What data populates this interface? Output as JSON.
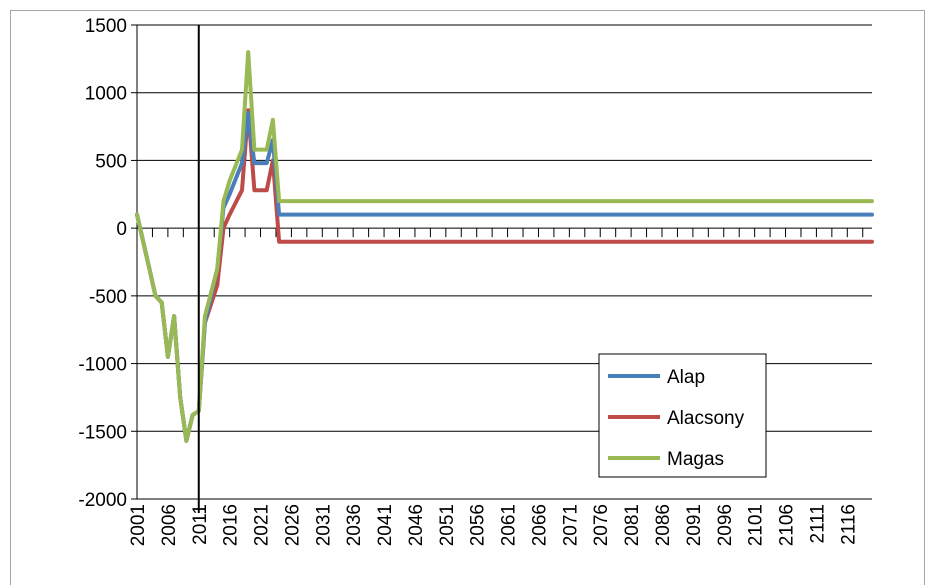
{
  "chart_data": {
    "type": "line",
    "title": "",
    "xlabel": "",
    "ylabel": "",
    "x_start": 2001,
    "x_end": 2120,
    "x_tick_labels": [
      "2001",
      "2006",
      "2011",
      "2016",
      "2021",
      "2026",
      "2031",
      "2036",
      "2041",
      "2046",
      "2051",
      "2056",
      "2061",
      "2066",
      "2071",
      "2076",
      "2081",
      "2086",
      "2091",
      "2096",
      "2101",
      "2106",
      "2111",
      "2116"
    ],
    "y_tick_labels": [
      "1500",
      "1000",
      "500",
      "0",
      "-500",
      "-1000",
      "-1500",
      "-2000"
    ],
    "ylim": [
      -2000,
      1500
    ],
    "grid": "horizontal",
    "reference_line_x": 2011,
    "legend_position": "bottom-right",
    "series": [
      {
        "name": "Alap",
        "color": "#4a7ebb",
        "points": [
          [
            2001,
            100
          ],
          [
            2002,
            -100
          ],
          [
            2003,
            -300
          ],
          [
            2004,
            -500
          ],
          [
            2005,
            -550
          ],
          [
            2006,
            -950
          ],
          [
            2007,
            -650
          ],
          [
            2008,
            -1250
          ],
          [
            2009,
            -1570
          ],
          [
            2010,
            -1380
          ],
          [
            2011,
            -1350
          ],
          [
            2012,
            -700
          ],
          [
            2014,
            -300
          ],
          [
            2015,
            150
          ],
          [
            2016,
            250
          ],
          [
            2018,
            480
          ],
          [
            2019,
            850
          ],
          [
            2020,
            480
          ],
          [
            2021,
            480
          ],
          [
            2022,
            480
          ],
          [
            2023,
            650
          ],
          [
            2024,
            100
          ],
          [
            2120,
            100
          ]
        ]
      },
      {
        "name": "Alacsony",
        "color": "#be4b48",
        "points": [
          [
            2001,
            100
          ],
          [
            2002,
            -100
          ],
          [
            2003,
            -300
          ],
          [
            2004,
            -500
          ],
          [
            2005,
            -550
          ],
          [
            2006,
            -950
          ],
          [
            2007,
            -650
          ],
          [
            2008,
            -1250
          ],
          [
            2009,
            -1570
          ],
          [
            2010,
            -1380
          ],
          [
            2011,
            -1350
          ],
          [
            2012,
            -700
          ],
          [
            2014,
            -420
          ],
          [
            2015,
            0
          ],
          [
            2016,
            100
          ],
          [
            2018,
            280
          ],
          [
            2019,
            870
          ],
          [
            2020,
            280
          ],
          [
            2021,
            280
          ],
          [
            2022,
            280
          ],
          [
            2023,
            500
          ],
          [
            2024,
            -100
          ],
          [
            2120,
            -100
          ]
        ]
      },
      {
        "name": "Magas",
        "color": "#98b954",
        "points": [
          [
            2001,
            100
          ],
          [
            2002,
            -100
          ],
          [
            2003,
            -300
          ],
          [
            2004,
            -500
          ],
          [
            2005,
            -550
          ],
          [
            2006,
            -950
          ],
          [
            2007,
            -650
          ],
          [
            2008,
            -1250
          ],
          [
            2009,
            -1570
          ],
          [
            2010,
            -1380
          ],
          [
            2011,
            -1350
          ],
          [
            2012,
            -650
          ],
          [
            2014,
            -300
          ],
          [
            2015,
            200
          ],
          [
            2016,
            350
          ],
          [
            2018,
            580
          ],
          [
            2019,
            1300
          ],
          [
            2020,
            580
          ],
          [
            2021,
            580
          ],
          [
            2022,
            580
          ],
          [
            2023,
            800
          ],
          [
            2024,
            200
          ],
          [
            2120,
            200
          ]
        ]
      }
    ]
  }
}
